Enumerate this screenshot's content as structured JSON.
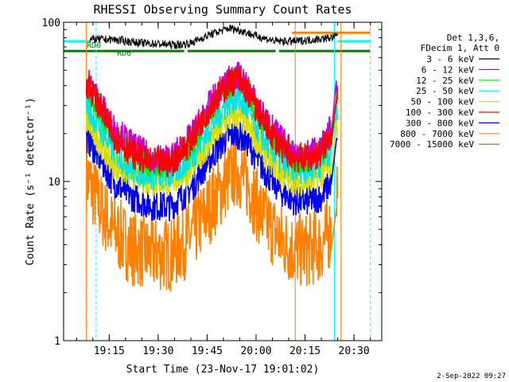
{
  "chart_data": {
    "type": "line",
    "title": "RHESSI Observing Summary Count Rates",
    "xlabel": "Start Time (23-Nov-17 19:01:02)",
    "ylabel": "Count Rate (s⁻¹ detector⁻¹)",
    "y_scale": "log",
    "ylim": [
      1,
      100
    ],
    "xlim": [
      "19:01:02",
      "20:38:30"
    ],
    "x_ticks": [
      "19:15",
      "19:30",
      "19:45",
      "20:00",
      "20:15",
      "20:30"
    ],
    "y_ticks": [
      "1",
      "10",
      "100"
    ],
    "grid": false,
    "legend_position": "right",
    "legend_header": [
      "Det 1,3,6,",
      "FDecim 1, Att 0"
    ],
    "date_stamp": "2-Sep-2022 09:27",
    "annotations": [
      "RD0",
      "RD6"
    ],
    "series": [
      {
        "name": "3 - 6 keV",
        "color": "#000000",
        "x": [
          "19:09",
          "19:16",
          "19:25",
          "19:36",
          "19:40",
          "19:46",
          "19:52",
          "19:56",
          "20:00",
          "20:06",
          "20:12",
          "20:18",
          "20:23",
          "20:25"
        ],
        "values": [
          78,
          78,
          74,
          72,
          74,
          84,
          92,
          88,
          82,
          76,
          76,
          78,
          80,
          82
        ]
      },
      {
        "name": "6 - 12 keV",
        "color": "#cc00cc",
        "x": [
          "19:08",
          "19:12",
          "19:16",
          "19:22",
          "19:28",
          "19:34",
          "19:40",
          "19:46",
          "19:51",
          "19:54",
          "19:57",
          "20:02",
          "20:08",
          "20:12",
          "20:16",
          "20:20",
          "20:23",
          "20:25"
        ],
        "values": [
          44,
          32,
          22,
          17,
          14,
          14,
          19,
          31,
          42,
          47,
          40,
          26,
          18,
          15,
          15,
          16,
          22,
          42
        ]
      },
      {
        "name": "12 - 25 keV",
        "color": "#00ee00",
        "x": [
          "19:08",
          "19:12",
          "19:16",
          "19:22",
          "19:28",
          "19:34",
          "19:40",
          "19:46",
          "19:51",
          "19:54",
          "19:57",
          "20:02",
          "20:08",
          "20:12",
          "20:16",
          "20:20",
          "20:23",
          "20:25"
        ],
        "values": [
          40,
          29,
          20,
          15,
          13,
          13,
          17,
          28,
          40,
          45,
          38,
          24,
          16,
          14,
          14,
          15,
          20,
          40
        ]
      },
      {
        "name": "25 - 50 keV",
        "color": "#00e5e5",
        "x": [
          "19:08",
          "19:12",
          "19:16",
          "19:22",
          "19:28",
          "19:34",
          "19:40",
          "19:46",
          "19:51",
          "19:54",
          "19:57",
          "20:02",
          "20:08",
          "20:12",
          "20:16",
          "20:20",
          "20:23",
          "20:25"
        ],
        "values": [
          30,
          22,
          16,
          12,
          11,
          11,
          14,
          22,
          31,
          34,
          29,
          19,
          13,
          12,
          12,
          13,
          16,
          30
        ]
      },
      {
        "name": "50 - 100 keV",
        "color": "#dddd00",
        "x": [
          "19:08",
          "19:12",
          "19:16",
          "19:22",
          "19:28",
          "19:34",
          "19:40",
          "19:46",
          "19:51",
          "19:54",
          "19:57",
          "20:02",
          "20:08",
          "20:12",
          "20:16",
          "20:20",
          "20:23",
          "20:25"
        ],
        "values": [
          24,
          18,
          13,
          11,
          10,
          10,
          12,
          18,
          24,
          26,
          23,
          16,
          11,
          10,
          10,
          11,
          13,
          24
        ]
      },
      {
        "name": "100 - 300 keV",
        "color": "#ff0000",
        "x": [
          "19:08",
          "19:12",
          "19:16",
          "19:22",
          "19:28",
          "19:34",
          "19:40",
          "19:46",
          "19:51",
          "19:54",
          "19:57",
          "20:02",
          "20:08",
          "20:12",
          "20:16",
          "20:20",
          "20:23",
          "20:25"
        ],
        "values": [
          42,
          30,
          20,
          15,
          13,
          13,
          18,
          30,
          40,
          44,
          38,
          24,
          16,
          14,
          14,
          15,
          20,
          40
        ]
      },
      {
        "name": "300 - 800 keV",
        "color": "#0000ee",
        "x": [
          "19:08",
          "19:12",
          "19:16",
          "19:22",
          "19:28",
          "19:34",
          "19:40",
          "19:46",
          "19:51",
          "19:54",
          "19:57",
          "20:02",
          "20:08",
          "20:12",
          "20:16",
          "20:20",
          "20:23",
          "20:25"
        ],
        "values": [
          19,
          14,
          10,
          8,
          7,
          7,
          9,
          14,
          19,
          20,
          18,
          12,
          8.5,
          7.5,
          7.5,
          8,
          10,
          18
        ]
      },
      {
        "name": "800 - 7000 keV",
        "color": "#ff8000",
        "x": [
          "19:08",
          "19:12",
          "19:16",
          "19:22",
          "19:28",
          "19:34",
          "19:40",
          "19:46",
          "19:51",
          "19:54",
          "19:57",
          "20:02",
          "20:08",
          "20:12",
          "20:16",
          "20:20",
          "20:23",
          "20:25"
        ],
        "values": [
          11,
          7,
          5,
          3.8,
          3.5,
          3.5,
          4.5,
          7,
          10,
          12,
          10,
          6,
          4.2,
          3.7,
          3.7,
          4,
          5,
          10
        ]
      },
      {
        "name": "7000 - 15000 keV",
        "color": "#996600",
        "x": [],
        "values": []
      }
    ],
    "flag_bars": [
      {
        "color": "#00ffff",
        "x": [
          [
            "19:01",
            "19:09"
          ],
          [
            "20:25",
            "20:35"
          ]
        ],
        "y": 76
      },
      {
        "color": "#008000",
        "x": [
          [
            "19:01",
            "19:11"
          ],
          [
            "19:11",
            "19:38"
          ],
          [
            "19:39",
            "20:06"
          ],
          [
            "20:07",
            "20:35"
          ]
        ],
        "y": 66
      },
      {
        "color": "#ff8000",
        "x": [
          [
            "20:11",
            "20:35"
          ]
        ],
        "y": 86
      }
    ],
    "markers": [
      {
        "x": "19:01",
        "color": "#00ffff",
        "style": "solid"
      },
      {
        "x": "19:08",
        "color": "#ff8000",
        "style": "solid"
      },
      {
        "x": "19:11",
        "color": "#00ffff",
        "style": "dashed"
      },
      {
        "x": "20:12",
        "color": "#ff8000",
        "style": "solid"
      },
      {
        "x": "20:24",
        "color": "#00ffff",
        "style": "solid"
      },
      {
        "x": "20:26",
        "color": "#ff8000",
        "style": "solid"
      },
      {
        "x": "20:35",
        "color": "#00ffff",
        "style": "dashed"
      }
    ]
  }
}
